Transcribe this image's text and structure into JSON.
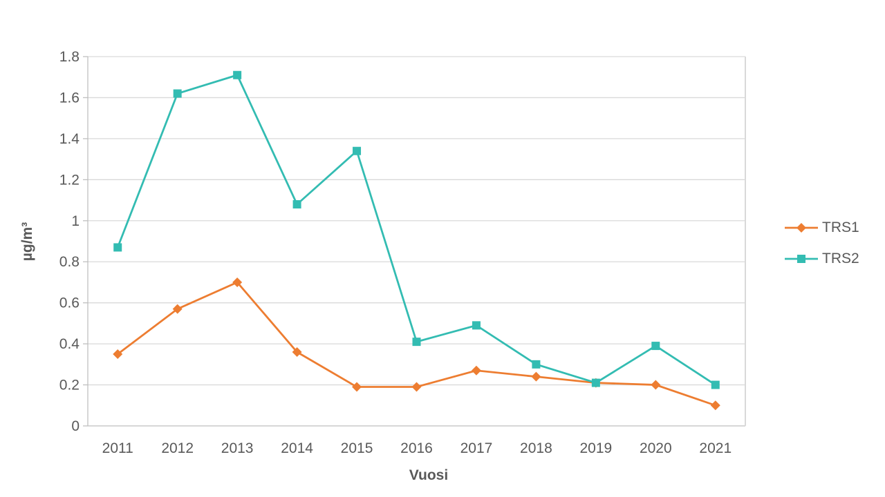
{
  "chart_data": {
    "type": "line",
    "title": "",
    "xlabel": "Vuosi",
    "ylabel": "µg/m³",
    "categories": [
      "2011",
      "2012",
      "2013",
      "2014",
      "2015",
      "2016",
      "2017",
      "2018",
      "2019",
      "2020",
      "2021"
    ],
    "series": [
      {
        "name": "TRS1",
        "marker": "diamond",
        "color": "#ED7D31",
        "values": [
          0.35,
          0.57,
          0.7,
          0.36,
          0.19,
          0.19,
          0.27,
          0.24,
          0.21,
          0.2,
          0.1
        ]
      },
      {
        "name": "TRS2",
        "marker": "square",
        "color": "#33BCB2",
        "values": [
          0.87,
          1.62,
          1.71,
          1.08,
          1.34,
          0.41,
          0.49,
          0.3,
          0.21,
          0.39,
          0.2
        ]
      }
    ],
    "ylim": [
      0,
      1.8
    ],
    "ytick_step": 0.2,
    "ytick_labels": [
      "0",
      "0.2",
      "0.4",
      "0.6",
      "0.8",
      "1",
      "1.2",
      "1.4",
      "1.6",
      "1.8"
    ],
    "grid": true,
    "legend_position": "right"
  },
  "style_colors": {
    "gridline": "#D9D9D9",
    "axis_line": "#BFBFBF",
    "text": "#595959"
  }
}
